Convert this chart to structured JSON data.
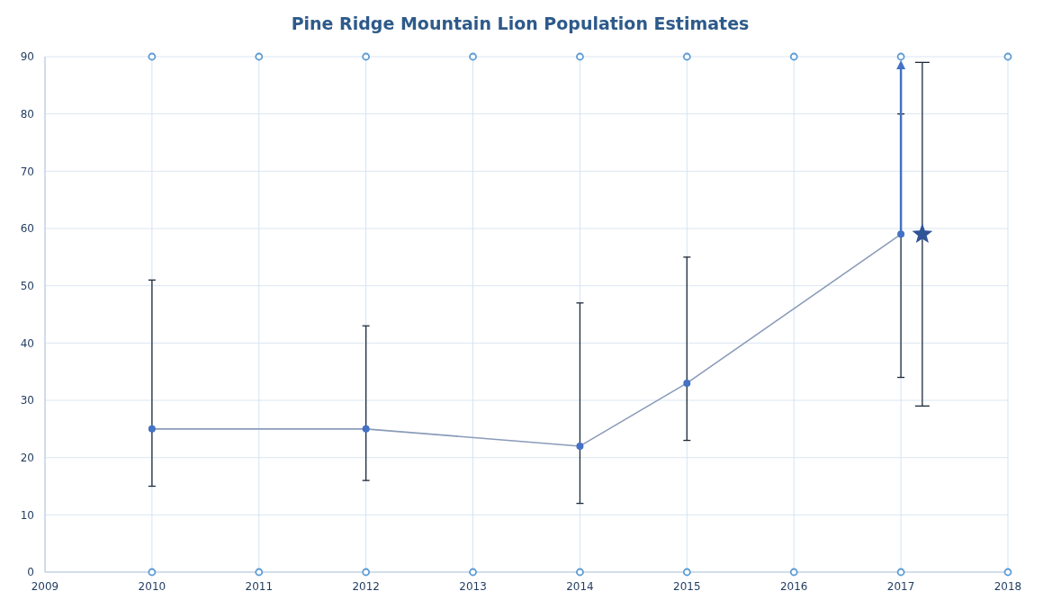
{
  "chart_data": {
    "type": "line",
    "title": "Pine Ridge Mountain Lion Population Estimates",
    "xlim": [
      2009,
      2018
    ],
    "xticks": [
      2009,
      2010,
      2011,
      2012,
      2013,
      2014,
      2015,
      2016,
      2017,
      2018
    ],
    "ylim": [
      0,
      90
    ],
    "yticks": [
      0,
      10,
      20,
      30,
      40,
      50,
      60,
      70,
      80,
      90
    ],
    "grid": true,
    "series": [
      {
        "type": "scatter",
        "marker": "circle",
        "color": "#5b9bd5",
        "x": [
          2010,
          2011,
          2012,
          2013,
          2014,
          2015,
          2016,
          2017,
          2018,
          2010,
          2011,
          2012,
          2013,
          2014,
          2015,
          2016,
          2017,
          2018
        ],
        "values": [
          0,
          0,
          0,
          0,
          0,
          0,
          0,
          0,
          0,
          90,
          90,
          90,
          90,
          90,
          90,
          90,
          90,
          90
        ]
      },
      {
        "marker": "circle",
        "color": "#4472c4",
        "x": [
          2010,
          2012,
          2014,
          2015,
          2017
        ],
        "values": [
          25,
          25,
          22,
          33,
          59
        ],
        "errors": [
          [
            15,
            51
          ],
          [
            16,
            43
          ],
          [
            12,
            47
          ],
          [
            23,
            55
          ],
          [
            34,
            80
          ]
        ]
      },
      {
        "type": "scatter",
        "marker": "star",
        "color": "#2f5597",
        "x": [
          2017.2
        ],
        "values": [
          59
        ],
        "errors": [
          [
            29,
            89
          ]
        ]
      }
    ]
  }
}
